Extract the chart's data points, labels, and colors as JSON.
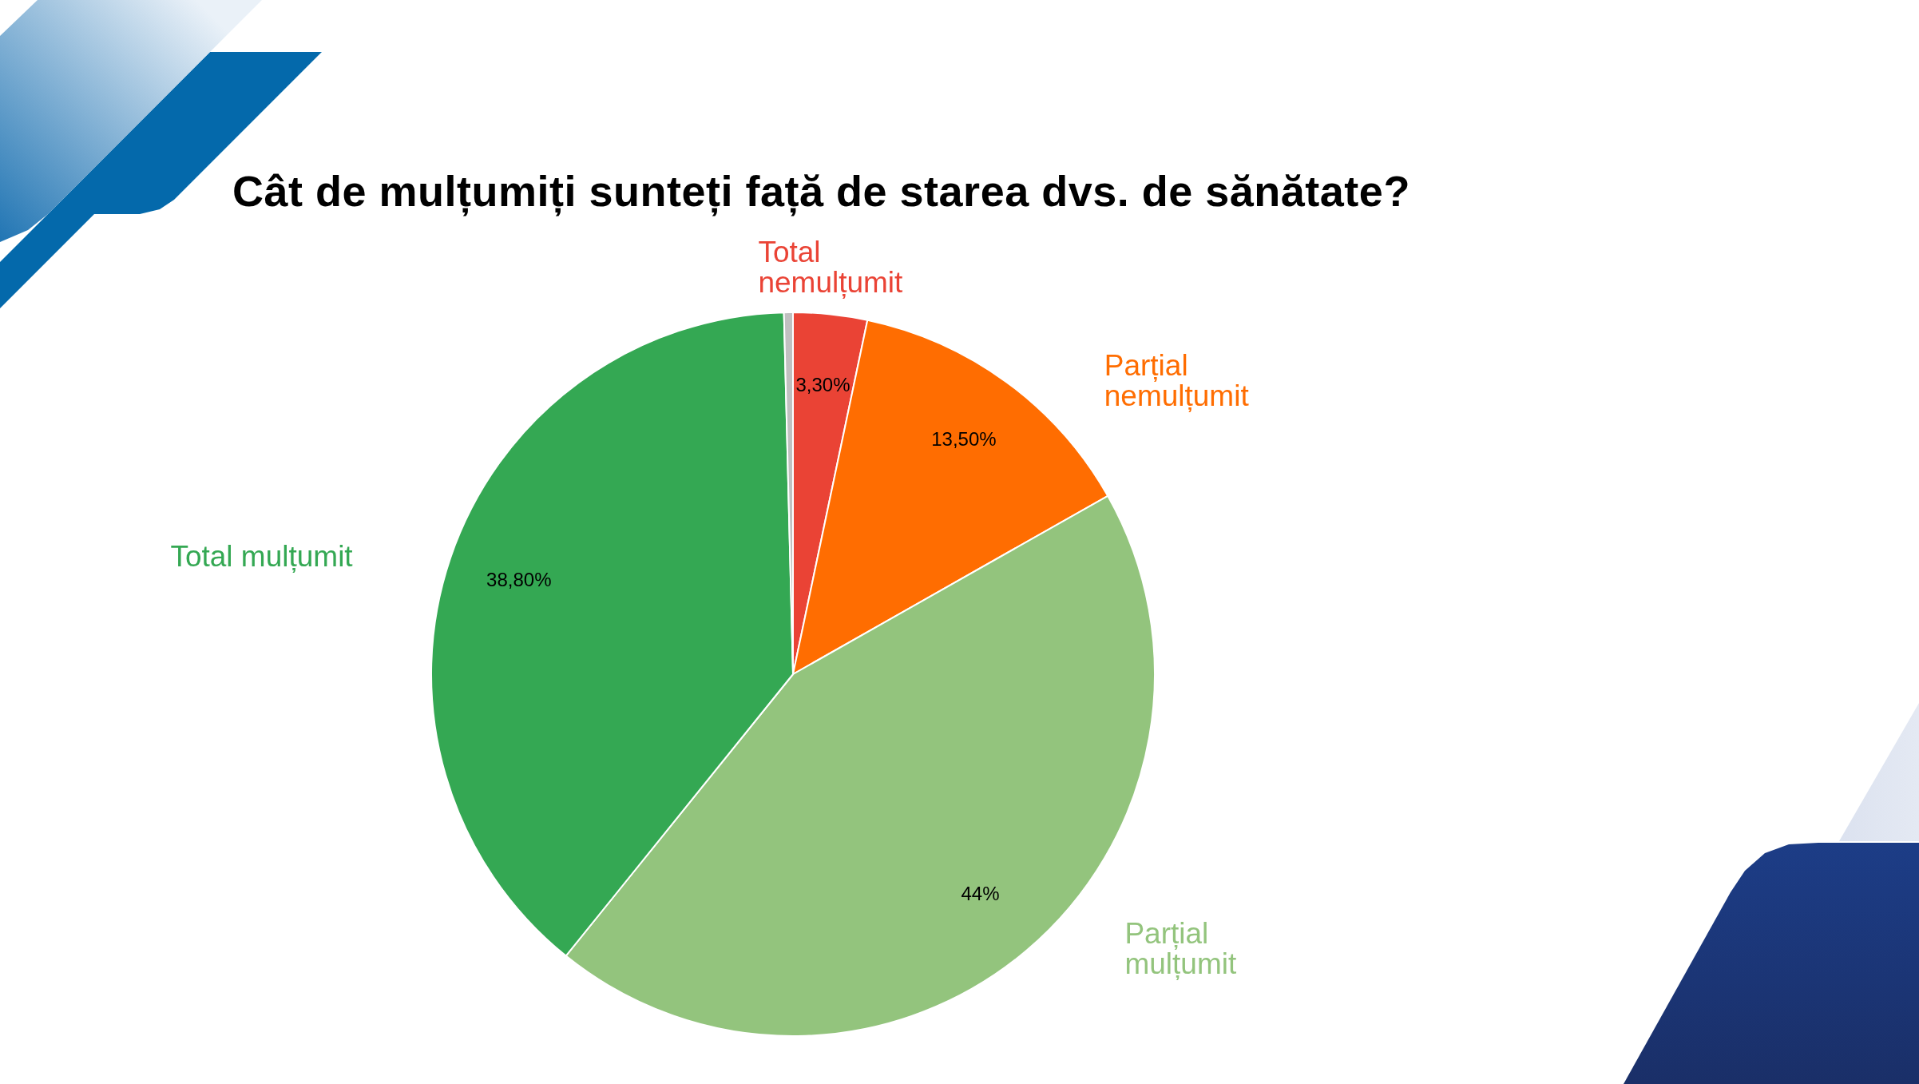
{
  "chart_data": {
    "type": "pie",
    "title": "Cât de mulțumiți sunteți față de starea dvs. de sănătate?",
    "categories": [
      "Total nemulțumit",
      "Parțial nemulțumit",
      "Parțial mulțumit",
      "Total mulțumit",
      null
    ],
    "values": [
      3.3,
      13.5,
      44,
      38.8,
      0.4
    ],
    "colors": [
      "#ea4335",
      "#ff6d01",
      "#93c47d",
      "#34a853",
      "#c0c0c0"
    ],
    "value_labels": [
      "3,30%",
      "13,50%",
      "44%",
      "38,80%",
      null
    ]
  }
}
